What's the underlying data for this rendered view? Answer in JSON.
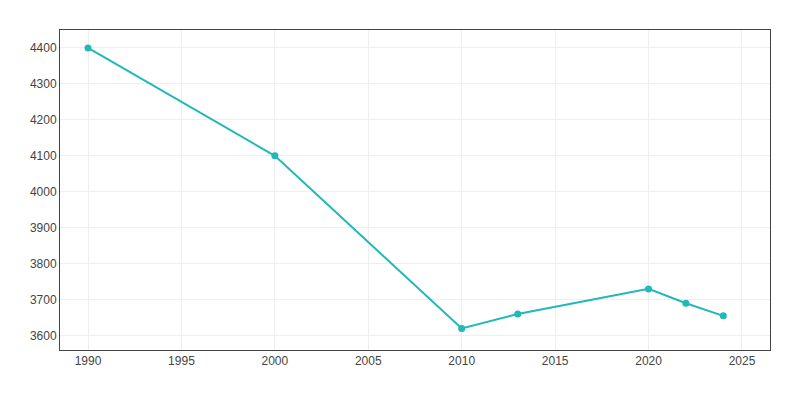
{
  "chart_data": {
    "type": "line",
    "x": [
      1990,
      2000,
      2010,
      2013,
      2020,
      2022,
      2024
    ],
    "values": [
      4400,
      4100,
      3620,
      3660,
      3730,
      3690,
      3655
    ],
    "color": "#20B8B8",
    "marker": "circle",
    "xlim": [
      1988.5,
      2026.5
    ],
    "ylim": [
      3560,
      4450
    ],
    "xticks": [
      1990,
      1995,
      2000,
      2005,
      2010,
      2015,
      2020,
      2025
    ],
    "yticks": [
      3600,
      3700,
      3800,
      3900,
      4000,
      4100,
      4200,
      4300,
      4400
    ],
    "grid": true
  }
}
